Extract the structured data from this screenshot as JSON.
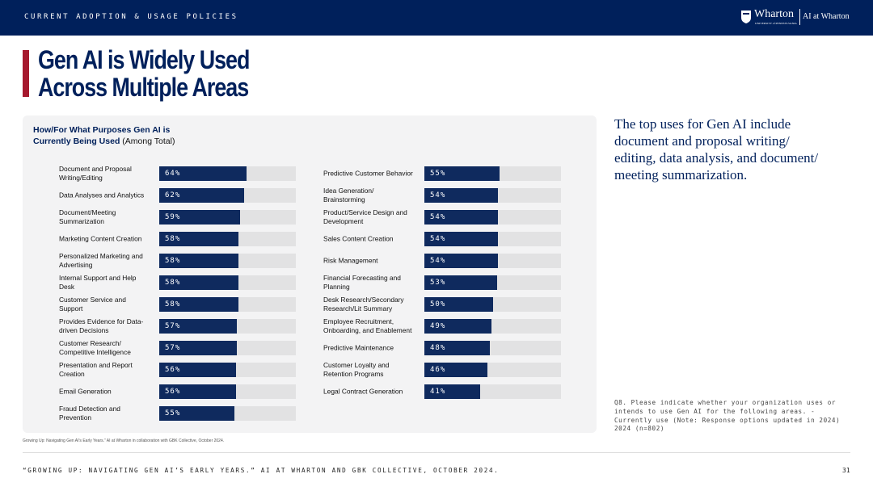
{
  "header": {
    "section": "CURRENT ADOPTION & USAGE POLICIES",
    "logo": "Wharton",
    "logo_sub": "UNIVERSITY of PENNSYLVANIA",
    "brand": "AI at Wharton"
  },
  "title": "Gen AI is Widely Used\nAcross Multiple Areas",
  "chart_heading": {
    "title": "How/For What Purposes Gen AI is\nCurrently Being Used",
    "note": "(Among Total)"
  },
  "chart_data": [
    {
      "type": "bar",
      "orientation": "horizontal",
      "color": "#0f2a5e",
      "track_color": "#e2e2e3",
      "xlim": [
        0,
        100
      ],
      "categories": [
        "Document and Proposal\nWriting/Editing",
        "Data Analyses and Analytics",
        "Document/Meeting\nSummarization",
        "Marketing Content Creation",
        "Personalized Marketing and\nAdvertising",
        "Internal Support and Help\nDesk",
        "Customer Service and\nSupport",
        "Provides Evidence for Data-\ndriven Decisions",
        "Customer Research/\nCompetitive Intelligence",
        "Presentation and Report\nCreation",
        "Email Generation",
        "Fraud Detection and\nPrevention"
      ],
      "values": [
        64,
        62,
        59,
        58,
        58,
        58,
        58,
        57,
        57,
        56,
        56,
        55
      ],
      "value_labels": [
        "64%",
        "62%",
        "59%",
        "58%",
        "58%",
        "58%",
        "58%",
        "57%",
        "57%",
        "56%",
        "56%",
        "55%"
      ]
    },
    {
      "type": "bar",
      "orientation": "horizontal",
      "color": "#0f2a5e",
      "track_color": "#e2e2e3",
      "xlim": [
        0,
        100
      ],
      "categories": [
        "Predictive Customer Behavior",
        "Idea Generation/\nBrainstorming",
        "Product/Service Design and\nDevelopment",
        "Sales Content Creation",
        "Risk Management",
        "Financial Forecasting and\nPlanning",
        "Desk Research/Secondary\nResearch/Lit Summary",
        "Employee Recruitment,\nOnboarding, and Enablement",
        "Predictive Maintenance",
        "Customer Loyalty and\nRetention Programs",
        "Legal Contract Generation"
      ],
      "values": [
        55,
        54,
        54,
        54,
        54,
        53,
        50,
        49,
        48,
        46,
        41
      ],
      "value_labels": [
        "55%",
        "54%",
        "54%",
        "54%",
        "54%",
        "53%",
        "50%",
        "49%",
        "48%",
        "46%",
        "41%"
      ]
    }
  ],
  "side_text": "The top uses for Gen AI include\ndocument and proposal writing/\nediting, data analysis, and document/\nmeeting summarization.",
  "question_note": "Q8. Please indicate whether your organization uses or intends to use Gen AI for the following areas. - Currently use (Note: Response options updated in 2024) 2024 (n=802)",
  "source": "Growing Up: Navigating Gen AI's Early Years.” AI at Wharton in collaboration with GBK Collective, October 2024.",
  "footer": "“GROWING UP: NAVIGATING GEN AI’S EARLY YEARS.” AI AT WHARTON AND GBK COLLECTIVE, OCTOBER 2024.",
  "page_number": "31"
}
